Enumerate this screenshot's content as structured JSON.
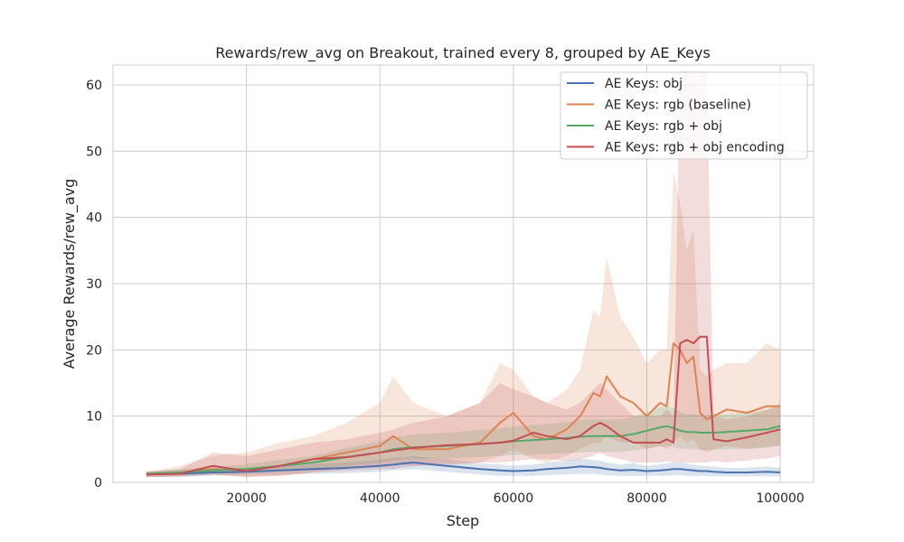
{
  "chart_data": {
    "type": "line",
    "title": "Rewards/rew_avg on Breakout, trained every 8, grouped by AE_Keys",
    "xlabel": "Step",
    "ylabel": "Average Rewards/rew_avg",
    "xlim": [
      0,
      105000
    ],
    "ylim": [
      0,
      63
    ],
    "xticks": [
      20000,
      40000,
      60000,
      80000,
      100000
    ],
    "yticks": [
      0,
      10,
      20,
      30,
      40,
      50,
      60
    ],
    "grid": true,
    "legend_position": "top-right",
    "x": [
      5000,
      10000,
      15000,
      20000,
      25000,
      30000,
      35000,
      40000,
      42000,
      45000,
      50000,
      55000,
      58000,
      60000,
      63000,
      65000,
      68000,
      70000,
      72000,
      73000,
      74000,
      76000,
      78000,
      80000,
      82000,
      83000,
      84000,
      85000,
      86000,
      87000,
      88000,
      89000,
      90000,
      92000,
      95000,
      98000,
      100000
    ],
    "series": [
      {
        "name": "AE Keys: obj",
        "color": "#4c72b0",
        "values": [
          1.2,
          1.3,
          1.5,
          1.6,
          1.8,
          2.0,
          2.2,
          2.5,
          2.7,
          3.0,
          2.5,
          2.0,
          1.8,
          1.7,
          1.8,
          2.0,
          2.2,
          2.4,
          2.3,
          2.2,
          2.0,
          1.8,
          1.9,
          1.7,
          1.8,
          1.9,
          2.0,
          2.0,
          1.9,
          1.8,
          1.7,
          1.7,
          1.6,
          1.5,
          1.5,
          1.6,
          1.5
        ],
        "lower": [
          0.8,
          0.9,
          1.0,
          1.1,
          1.2,
          1.3,
          1.4,
          1.6,
          1.8,
          2.0,
          1.6,
          1.2,
          1.0,
          1.0,
          1.0,
          1.1,
          1.2,
          1.3,
          1.3,
          1.2,
          1.1,
          1.0,
          1.0,
          1.0,
          1.0,
          1.0,
          1.1,
          1.1,
          1.0,
          1.0,
          1.0,
          1.0,
          0.9,
          0.9,
          0.9,
          0.9,
          0.9
        ],
        "upper": [
          1.6,
          1.8,
          2.0,
          2.2,
          2.5,
          2.8,
          3.0,
          3.4,
          3.7,
          4.0,
          3.5,
          2.9,
          2.7,
          2.5,
          2.7,
          3.0,
          3.3,
          3.6,
          3.4,
          3.3,
          3.0,
          2.7,
          2.9,
          2.5,
          2.7,
          2.9,
          3.0,
          3.0,
          2.9,
          2.7,
          2.5,
          2.5,
          2.4,
          2.2,
          2.2,
          2.4,
          2.2
        ]
      },
      {
        "name": "AE Keys: rgb (baseline)",
        "color": "#dd8452",
        "values": [
          1.2,
          1.5,
          2.0,
          1.8,
          2.5,
          3.5,
          4.5,
          5.5,
          7.0,
          5.0,
          5.0,
          6.0,
          9.0,
          10.5,
          7.0,
          6.5,
          8.0,
          10.0,
          13.5,
          13.0,
          16.0,
          13.0,
          12.0,
          10.0,
          12.0,
          11.5,
          21.0,
          20.0,
          18.0,
          19.0,
          10.5,
          9.5,
          10.0,
          11.0,
          10.5,
          11.5,
          11.5
        ],
        "lower": [
          0.8,
          0.9,
          1.2,
          0.8,
          1.0,
          1.5,
          2.0,
          2.5,
          3.0,
          2.5,
          2.5,
          3.0,
          4.0,
          5.0,
          3.5,
          3.0,
          4.0,
          5.0,
          6.0,
          6.0,
          7.0,
          6.0,
          6.0,
          5.0,
          5.5,
          5.0,
          6.0,
          7.0,
          6.0,
          6.5,
          5.0,
          4.5,
          5.0,
          5.5,
          5.0,
          5.5,
          5.5
        ],
        "upper": [
          1.6,
          2.5,
          4.0,
          4.5,
          6.0,
          7.0,
          9.0,
          12.0,
          16.0,
          12.0,
          10.0,
          12.0,
          18.0,
          17.0,
          13.0,
          12.0,
          14.0,
          17.0,
          26.0,
          25.0,
          34.0,
          25.0,
          22.0,
          18.0,
          20.0,
          20.0,
          47.0,
          42.0,
          35.0,
          38.0,
          17.0,
          16.0,
          17.0,
          18.0,
          18.0,
          21.0,
          20.0
        ]
      },
      {
        "name": "AE Keys: rgb + obj",
        "color": "#55a868",
        "values": [
          1.3,
          1.5,
          1.8,
          2.0,
          2.5,
          3.0,
          3.8,
          4.5,
          5.0,
          5.3,
          5.5,
          5.8,
          6.0,
          6.2,
          6.4,
          6.5,
          6.7,
          6.9,
          7.0,
          7.0,
          7.0,
          7.0,
          7.3,
          7.8,
          8.3,
          8.5,
          8.2,
          7.8,
          7.6,
          7.6,
          7.5,
          7.5,
          7.5,
          7.6,
          7.8,
          8.0,
          8.5
        ],
        "lower": [
          1.0,
          1.1,
          1.3,
          1.4,
          1.7,
          2.0,
          2.5,
          3.0,
          3.3,
          3.5,
          3.6,
          3.8,
          4.0,
          4.1,
          4.2,
          4.3,
          4.4,
          4.5,
          4.6,
          4.6,
          4.6,
          4.6,
          4.8,
          5.1,
          5.4,
          5.5,
          5.3,
          5.1,
          5.0,
          5.0,
          4.9,
          4.9,
          4.9,
          5.0,
          5.1,
          5.2,
          5.6
        ],
        "upper": [
          1.6,
          2.0,
          2.4,
          2.7,
          3.4,
          4.0,
          5.2,
          6.2,
          6.8,
          7.2,
          7.5,
          7.9,
          8.2,
          8.4,
          8.7,
          8.8,
          9.1,
          9.4,
          9.5,
          9.5,
          9.5,
          9.5,
          9.9,
          10.6,
          11.3,
          11.6,
          11.2,
          10.6,
          10.3,
          10.3,
          10.2,
          10.2,
          10.2,
          10.3,
          10.6,
          10.9,
          11.5
        ]
      },
      {
        "name": "AE Keys: rgb + obj encoding",
        "color": "#c44e52",
        "values": [
          1.2,
          1.3,
          2.5,
          1.7,
          2.5,
          3.5,
          3.8,
          4.5,
          4.8,
          5.2,
          5.6,
          5.8,
          6.0,
          6.3,
          7.5,
          7.0,
          6.5,
          7.0,
          8.5,
          9.0,
          8.5,
          7.0,
          6.0,
          6.0,
          6.0,
          6.5,
          6.0,
          21.0,
          21.5,
          21.0,
          22.0,
          22.0,
          6.5,
          6.2,
          6.8,
          7.5,
          8.0
        ],
        "lower": [
          0.8,
          0.8,
          1.2,
          0.8,
          1.0,
          1.5,
          1.8,
          2.0,
          2.0,
          2.5,
          2.8,
          3.0,
          3.0,
          3.2,
          3.5,
          3.5,
          3.2,
          3.5,
          4.0,
          4.5,
          4.0,
          3.5,
          3.0,
          3.0,
          3.0,
          3.2,
          3.0,
          3.0,
          3.0,
          3.0,
          3.0,
          3.0,
          3.2,
          3.0,
          3.3,
          3.6,
          4.0
        ],
        "upper": [
          1.6,
          2.0,
          4.5,
          4.0,
          5.0,
          6.0,
          6.5,
          7.5,
          8.0,
          9.0,
          10.0,
          12.0,
          15.0,
          14.0,
          13.0,
          12.0,
          11.0,
          12.0,
          14.0,
          15.0,
          14.0,
          12.0,
          10.0,
          10.0,
          10.0,
          11.0,
          10.0,
          62.0,
          62.0,
          62.0,
          62.0,
          62.0,
          10.0,
          9.5,
          10.0,
          11.0,
          12.0
        ]
      }
    ]
  }
}
